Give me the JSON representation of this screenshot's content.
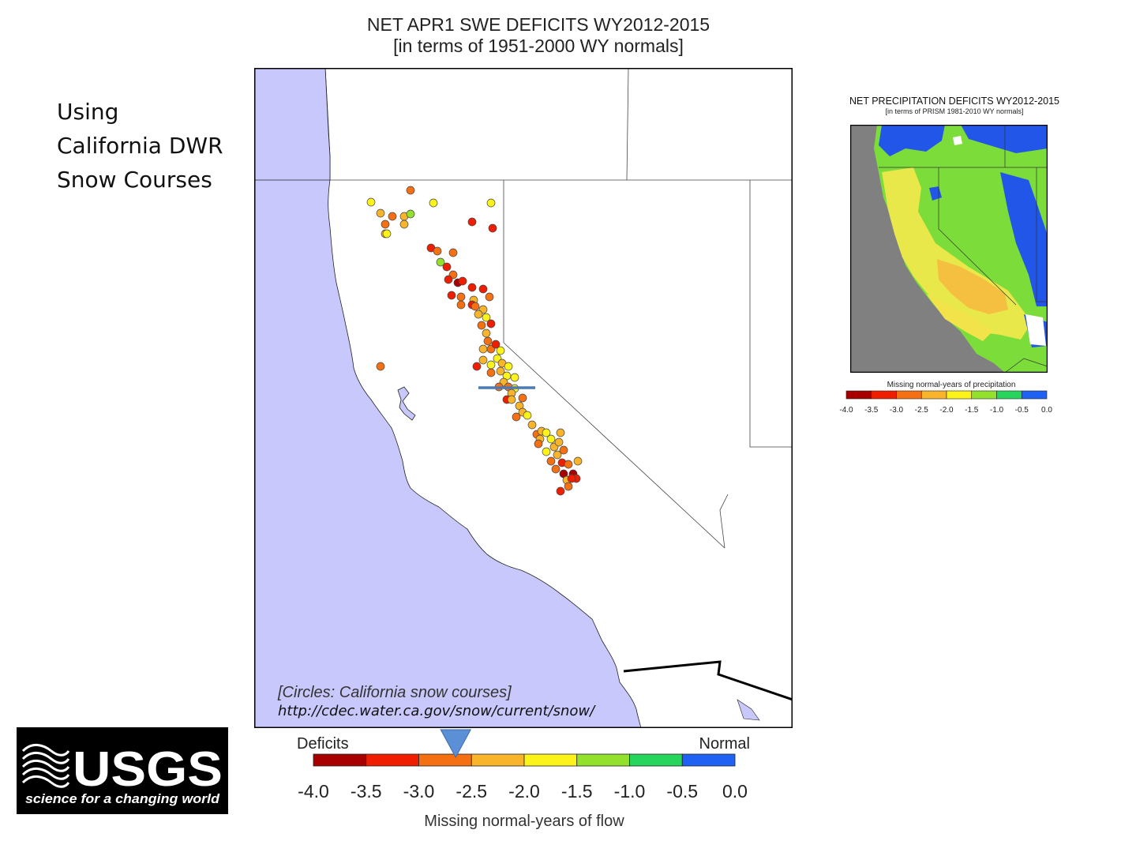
{
  "main_map": {
    "title_line1": "NET APR1 SWE DEFICITS WY2012-2015",
    "title_line2": "[in terms of 1951-2000 WY normals]",
    "circles_caption": "[Circles: California snow courses]",
    "source_url": "http://cdec.water.ca.gov/snow/current/snow/",
    "legend": {
      "left_label": "Deficits",
      "right_label": "Normal",
      "ticks": [
        "-4.0",
        "-3.5",
        "-3.0",
        "-2.5",
        "-2.0",
        "-1.5",
        "-1.0",
        "-0.5",
        "0.0"
      ],
      "colors": [
        "#a80000",
        "#f01e00",
        "#f57012",
        "#f8b42a",
        "#fbf31a",
        "#93e12d",
        "#27d55d",
        "#1f62f3"
      ],
      "axis_label": "Missing normal-years of flow",
      "marker_value": -2.65
    },
    "colors": {
      "ocean": "#c8c8fc",
      "land": "#ffffff"
    }
  },
  "side_text": {
    "line1": "Using",
    "line2": "California DWR",
    "line3": "Snow Courses"
  },
  "inset_map": {
    "title": "NET PRECIPITATION DEFICITS WY2012-2015",
    "subtitle": "[in terms of PRISM 1981-2010 WY normals]",
    "legend_label": "Missing normal-years of precipitation",
    "ticks": [
      "-4.0",
      "-3.5",
      "-3.0",
      "-2.5",
      "-2.0",
      "-1.5",
      "-1.0",
      "-0.5",
      "0.0"
    ],
    "colors": [
      "#a80000",
      "#f01e00",
      "#f57012",
      "#f8b42a",
      "#fbf31a",
      "#93e12d",
      "#27d55d",
      "#1f62f3"
    ]
  },
  "logo": {
    "name": "USGS",
    "tagline": "science for a changing world"
  }
}
